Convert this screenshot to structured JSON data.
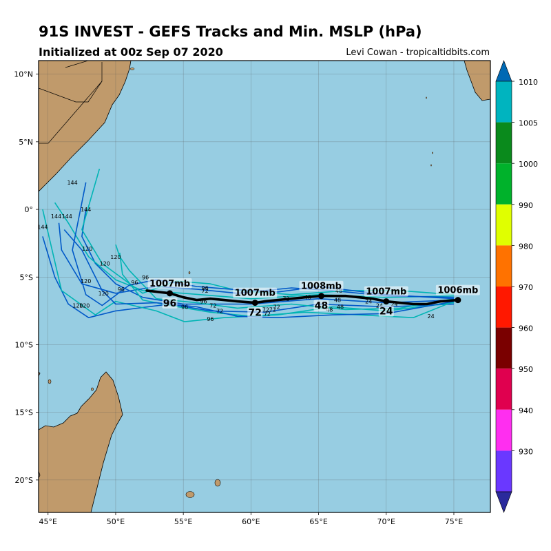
{
  "header": {
    "title": "91S INVEST - GEFS Tracks and Min. MSLP (hPa)",
    "subtitle": "Initialized at 00z Sep 07 2020",
    "credit": "Levi Cowan - tropicaltidbits.com"
  },
  "map": {
    "lon_range": [
      44.3,
      77.7
    ],
    "lat_range": [
      -22.4,
      11.0
    ],
    "lon_ticks": [
      {
        "v": 45,
        "label": "45°E"
      },
      {
        "v": 50,
        "label": "50°E"
      },
      {
        "v": 55,
        "label": "55°E"
      },
      {
        "v": 60,
        "label": "60°E"
      },
      {
        "v": 65,
        "label": "65°E"
      },
      {
        "v": 70,
        "label": "70°E"
      },
      {
        "v": 75,
        "label": "75°E"
      }
    ],
    "lat_ticks": [
      {
        "v": 10,
        "label": "10°N"
      },
      {
        "v": 5,
        "label": "5°N"
      },
      {
        "v": 0,
        "label": "0°"
      },
      {
        "v": -5,
        "label": "5°S"
      },
      {
        "v": -10,
        "label": "10°S"
      },
      {
        "v": -15,
        "label": "15°S"
      },
      {
        "v": -20,
        "label": "20°S"
      }
    ],
    "ocean_color": "#97cde2",
    "land_color": "#c09a6b",
    "grid": true
  },
  "colorbar": {
    "ticks": [
      "1010",
      "1005",
      "1000",
      "990",
      "980",
      "970",
      "960",
      "950",
      "940",
      "930"
    ],
    "colors": [
      "#0069b4",
      "#00b4bf",
      "#0a8a1c",
      "#00b22b",
      "#e0ff00",
      "#ff7200",
      "#ff1800",
      "#7a0000",
      "#e0004f",
      "#ff2ef0",
      "#6a38ff",
      "#2a2a9c"
    ]
  },
  "chart_data": {
    "type": "map-tracks",
    "title": "91S INVEST - GEFS Tracks and Min. MSLP (hPa)",
    "mean_track": [
      [
        75.3,
        -6.7
      ],
      [
        74,
        -6.8
      ],
      [
        73,
        -7.0
      ],
      [
        72,
        -7.0
      ],
      [
        71,
        -6.9
      ],
      [
        70,
        -6.8
      ],
      [
        69,
        -6.6
      ],
      [
        68,
        -6.5
      ],
      [
        67,
        -6.4
      ],
      [
        65.2,
        -6.4
      ],
      [
        64,
        -6.5
      ],
      [
        63,
        -6.6
      ],
      [
        62,
        -6.7
      ],
      [
        61,
        -6.8
      ],
      [
        60.3,
        -6.9
      ],
      [
        59,
        -6.8
      ],
      [
        58,
        -6.7
      ],
      [
        57,
        -6.6
      ],
      [
        56,
        -6.7
      ],
      [
        55,
        -6.5
      ],
      [
        54,
        -6.2
      ],
      [
        52.3,
        -6.0
      ]
    ],
    "annotations": [
      {
        "lon": 75.3,
        "lat": -6.7,
        "mb": "1006mb",
        "hour": ""
      },
      {
        "lon": 70.0,
        "lat": -6.8,
        "mb": "1007mb",
        "hour": "24"
      },
      {
        "lon": 65.2,
        "lat": -6.4,
        "mb": "1008mb",
        "hour": "48"
      },
      {
        "lon": 60.3,
        "lat": -6.9,
        "mb": "1007mb",
        "hour": "72"
      },
      {
        "lon": 54.0,
        "lat": -6.2,
        "mb": "1007mb",
        "hour": "96"
      }
    ],
    "ensemble_tracks": [
      {
        "color": "#0058c8",
        "points": [
          [
            75,
            -6.7
          ],
          [
            70,
            -6.9
          ],
          [
            65,
            -6.6
          ],
          [
            60,
            -7.0
          ],
          [
            55,
            -7.0
          ],
          [
            52,
            -6.5
          ],
          [
            50,
            -5.5
          ],
          [
            48.5,
            -4
          ],
          [
            47.5,
            -2
          ],
          [
            47.8,
            0
          ]
        ]
      },
      {
        "color": "#00b4b4",
        "points": [
          [
            75,
            -6.4
          ],
          [
            70,
            -6.5
          ],
          [
            65,
            -6.3
          ],
          [
            60,
            -6.6
          ],
          [
            55,
            -6.2
          ],
          [
            52,
            -6.0
          ],
          [
            50,
            -5.2
          ],
          [
            48,
            -3.5
          ],
          [
            46.5,
            -1
          ],
          [
            45.5,
            0.5
          ]
        ]
      },
      {
        "color": "#0058c8",
        "points": [
          [
            75,
            -7.0
          ],
          [
            70,
            -7.2
          ],
          [
            65,
            -7.0
          ],
          [
            61,
            -7.6
          ],
          [
            57,
            -7.5
          ],
          [
            54,
            -7.0
          ],
          [
            50,
            -7.5
          ],
          [
            48,
            -8.0
          ],
          [
            46.5,
            -7.0
          ],
          [
            45.5,
            -5
          ],
          [
            44.6,
            -2
          ]
        ]
      },
      {
        "color": "#00b4b4",
        "points": [
          [
            75,
            -6.9
          ],
          [
            70,
            -7.5
          ],
          [
            66,
            -7.2
          ],
          [
            62,
            -7.8
          ],
          [
            58,
            -8.0
          ],
          [
            55.1,
            -8.3
          ],
          [
            53,
            -7.5
          ],
          [
            50,
            -6.8
          ],
          [
            48.5,
            -7.8
          ],
          [
            46,
            -6.0
          ],
          [
            44.6,
            0
          ]
        ]
      },
      {
        "color": "#0058c8",
        "points": [
          [
            75,
            -6.5
          ],
          [
            70,
            -6.4
          ],
          [
            66,
            -6.0
          ],
          [
            63,
            -5.8
          ],
          [
            59,
            -6.2
          ],
          [
            56,
            -5.9
          ],
          [
            53,
            -5.7
          ],
          [
            50,
            -6.2
          ],
          [
            47.5,
            -5.5
          ],
          [
            46,
            -3
          ],
          [
            45.8,
            -1
          ]
        ]
      },
      {
        "color": "#00b4b4",
        "points": [
          [
            75,
            -6.6
          ],
          [
            71,
            -7.3
          ],
          [
            67,
            -7.4
          ],
          [
            63,
            -7.0
          ],
          [
            59,
            -7.3
          ],
          [
            56,
            -6.9
          ],
          [
            53,
            -6.6
          ],
          [
            51,
            -4.5
          ],
          [
            50.3,
            -3.5
          ],
          [
            50,
            -2.6
          ]
        ]
      },
      {
        "color": "#00b4b4",
        "points": [
          [
            75,
            -6.8
          ],
          [
            72,
            -8.0
          ],
          [
            68,
            -7.8
          ],
          [
            64,
            -7.6
          ],
          [
            60,
            -7.9
          ],
          [
            57,
            -7.6
          ],
          [
            54,
            -7.1
          ],
          [
            52,
            -6.7
          ],
          [
            50.5,
            -4.8
          ],
          [
            50.3,
            -3.2
          ]
        ]
      },
      {
        "color": "#0058c8",
        "points": [
          [
            75,
            -6.8
          ],
          [
            70,
            -7.7
          ],
          [
            66,
            -7.8
          ],
          [
            62,
            -8.0
          ],
          [
            59,
            -7.9
          ],
          [
            56,
            -7.2
          ],
          [
            53,
            -6.9
          ],
          [
            50,
            -7.0
          ],
          [
            49,
            -6.0
          ],
          [
            47.5,
            -3
          ],
          [
            46.2,
            -1.5
          ]
        ]
      },
      {
        "color": "#00b4b4",
        "points": [
          [
            75,
            -6.3
          ],
          [
            71,
            -6.0
          ],
          [
            67,
            -6.0
          ],
          [
            63,
            -6.3
          ],
          [
            59,
            -6.0
          ],
          [
            57,
            -5.5
          ],
          [
            54.5,
            -5.3
          ],
          [
            52,
            -6.2
          ],
          [
            49,
            -4
          ],
          [
            47.5,
            -1.5
          ],
          [
            48.8,
            3
          ]
        ]
      },
      {
        "color": "#0058c8",
        "points": [
          [
            75,
            -6.6
          ],
          [
            70,
            -6.3
          ],
          [
            65,
            -5.7
          ],
          [
            62,
            -6.1
          ],
          [
            58.5,
            -5.9
          ],
          [
            56,
            -5.7
          ],
          [
            53,
            -5.2
          ],
          [
            51,
            -5.6
          ],
          [
            49,
            -7.1
          ],
          [
            47.8,
            -6.3
          ],
          [
            46.8,
            -3
          ],
          [
            47.8,
            2
          ]
        ]
      }
    ],
    "hour_labels": [
      {
        "lon": 46.8,
        "lat": 2.0,
        "t": "144"
      },
      {
        "lon": 47.8,
        "lat": 0.0,
        "t": "144"
      },
      {
        "lon": 45.6,
        "lat": -0.5,
        "t": "144"
      },
      {
        "lon": 46.4,
        "lat": -0.5,
        "t": "144"
      },
      {
        "lon": 44.6,
        "lat": -1.3,
        "t": "144"
      },
      {
        "lon": 47.9,
        "lat": -2.9,
        "t": "120"
      },
      {
        "lon": 50.0,
        "lat": -3.5,
        "t": "120"
      },
      {
        "lon": 49.2,
        "lat": -4.0,
        "t": "120"
      },
      {
        "lon": 47.8,
        "lat": -5.3,
        "t": "120"
      },
      {
        "lon": 49.1,
        "lat": -6.2,
        "t": "120"
      },
      {
        "lon": 47.2,
        "lat": -7.1,
        "t": "120"
      },
      {
        "lon": 47.7,
        "lat": -7.1,
        "t": "120"
      },
      {
        "lon": 52.2,
        "lat": -5.0,
        "t": "96"
      },
      {
        "lon": 51.4,
        "lat": -5.4,
        "t": "96"
      },
      {
        "lon": 50.4,
        "lat": -5.9,
        "t": "96"
      },
      {
        "lon": 56.6,
        "lat": -5.8,
        "t": "96"
      },
      {
        "lon": 55.1,
        "lat": -7.2,
        "t": "96"
      },
      {
        "lon": 57.0,
        "lat": -8.1,
        "t": "96"
      },
      {
        "lon": 56.6,
        "lat": -6.0,
        "t": "72"
      },
      {
        "lon": 56.5,
        "lat": -6.8,
        "t": "96"
      },
      {
        "lon": 57.2,
        "lat": -7.1,
        "t": "72"
      },
      {
        "lon": 57.7,
        "lat": -7.5,
        "t": "72"
      },
      {
        "lon": 61.1,
        "lat": -7.4,
        "t": "72"
      },
      {
        "lon": 61.9,
        "lat": -7.2,
        "t": "72"
      },
      {
        "lon": 62.6,
        "lat": -6.6,
        "t": "72"
      },
      {
        "lon": 61.6,
        "lat": -7.4,
        "t": "72"
      },
      {
        "lon": 61.2,
        "lat": -7.7,
        "t": "72"
      },
      {
        "lon": 66.5,
        "lat": -6.0,
        "t": "48"
      },
      {
        "lon": 66.4,
        "lat": -6.7,
        "t": "48"
      },
      {
        "lon": 66.6,
        "lat": -7.2,
        "t": "48"
      },
      {
        "lon": 65.8,
        "lat": -7.4,
        "t": "48"
      },
      {
        "lon": 64.2,
        "lat": -6.5,
        "t": "48"
      },
      {
        "lon": 73.3,
        "lat": -7.9,
        "t": "24"
      },
      {
        "lon": 69.5,
        "lat": -7.1,
        "t": "24"
      },
      {
        "lon": 70.6,
        "lat": -7.0,
        "t": "24"
      },
      {
        "lon": 68.7,
        "lat": -6.8,
        "t": "24"
      }
    ]
  }
}
